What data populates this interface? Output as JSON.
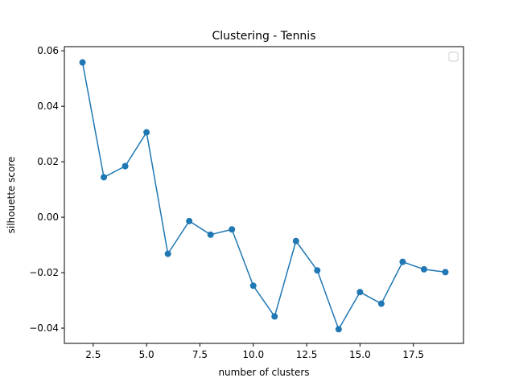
{
  "chart_data": {
    "type": "line",
    "title": "Clustering - Tennis",
    "xlabel": "number of clusters",
    "ylabel": "silhouette score",
    "xlim": [
      1.15,
      19.85
    ],
    "ylim": [
      -0.0455,
      0.0615
    ],
    "xticks": [
      2.5,
      5.0,
      7.5,
      10.0,
      12.5,
      15.0,
      17.5
    ],
    "xtick_labels": [
      "2.5",
      "5.0",
      "7.5",
      "10.0",
      "12.5",
      "15.0",
      "17.5"
    ],
    "yticks": [
      -0.04,
      -0.02,
      0.0,
      0.02,
      0.04,
      0.06
    ],
    "ytick_labels": [
      "−0.04",
      "−0.02",
      "0.00",
      "0.02",
      "0.04",
      "0.06"
    ],
    "grid": false,
    "legend": "top-right, empty",
    "color": "#1f77b4",
    "marker": "circle",
    "x": [
      2,
      3,
      4,
      5,
      6,
      7,
      8,
      9,
      10,
      11,
      12,
      13,
      14,
      15,
      16,
      17,
      18,
      19
    ],
    "y": [
      0.0558,
      0.0144,
      0.0184,
      0.0306,
      -0.0132,
      -0.0014,
      -0.0063,
      -0.0044,
      -0.0247,
      -0.0358,
      -0.0086,
      -0.0192,
      -0.0404,
      -0.027,
      -0.0312,
      -0.0161,
      -0.0188,
      -0.0198
    ]
  }
}
